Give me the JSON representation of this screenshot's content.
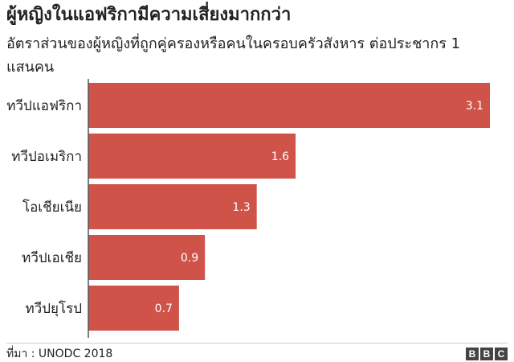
{
  "chart_data": {
    "type": "bar",
    "orientation": "horizontal",
    "title": "ผู้หญิงในแอฟริกามีความเสี่ยงมากกว่า",
    "subtitle": "อัตราส่วนของผู้หญิงที่ถูกคู่ครองหรือคนในครอบครัวสังหาร ต่อประชากร 1 แสนคน",
    "categories": [
      "ทวีปแอฟริกา",
      "ทวีปอเมริกา",
      "โอเชียเนีย",
      "ทวีปเอเชีย",
      "ทวีปยุโรป"
    ],
    "values": [
      3.1,
      1.6,
      1.3,
      0.9,
      0.7
    ],
    "value_labels": [
      "3.1",
      "1.6",
      "1.3",
      "0.9",
      "0.7"
    ],
    "xlim": [
      0,
      3.1
    ],
    "bar_color": "#d0534a",
    "grid": false,
    "legend": "none"
  },
  "footer": {
    "source": "ที่มา : UNODC 2018",
    "logo_letters": [
      "B",
      "B",
      "C"
    ],
    "logo_color": "#444444"
  }
}
